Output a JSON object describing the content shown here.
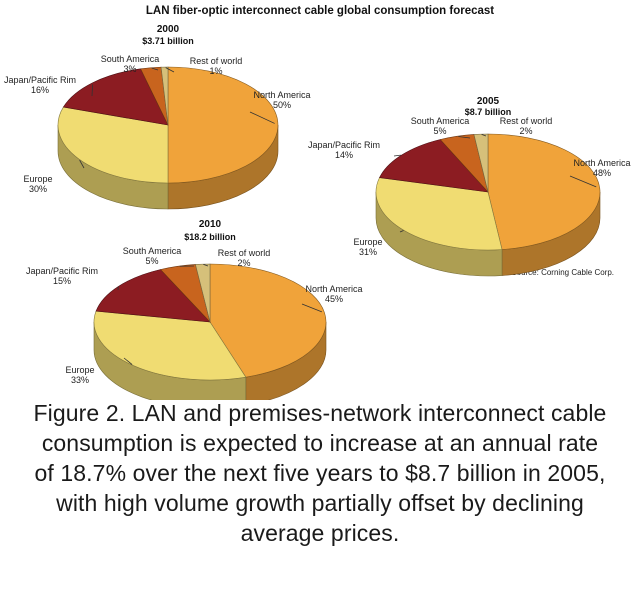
{
  "chart_data": [
    {
      "type": "pie",
      "title": "2000",
      "subtitle": "$3.71 billion",
      "slices": [
        {
          "name": "North America",
          "value": 50,
          "label_pct": "50%",
          "color": "#f0a33a"
        },
        {
          "name": "Europe",
          "value": 30,
          "label_pct": "30%",
          "color": "#f0dc72"
        },
        {
          "name": "Japan/Pacific Rim",
          "value": 16,
          "label_pct": "16%",
          "color": "#8c1c22"
        },
        {
          "name": "South America",
          "value": 3,
          "label_pct": "3%",
          "color": "#c8641e"
        },
        {
          "name": "Rest of world",
          "value": 1,
          "label_pct": "1%",
          "color": "#d6c07a"
        }
      ]
    },
    {
      "type": "pie",
      "title": "2005",
      "subtitle": "$8.7 billion",
      "slices": [
        {
          "name": "North America",
          "value": 48,
          "label_pct": "48%",
          "color": "#f0a33a"
        },
        {
          "name": "Europe",
          "value": 31,
          "label_pct": "31%",
          "color": "#f0dc72"
        },
        {
          "name": "Japan/Pacific Rim",
          "value": 14,
          "label_pct": "14%",
          "color": "#8c1c22"
        },
        {
          "name": "South America",
          "value": 5,
          "label_pct": "5%",
          "color": "#c8641e"
        },
        {
          "name": "Rest of world",
          "value": 2,
          "label_pct": "2%",
          "color": "#d6c07a"
        }
      ]
    },
    {
      "type": "pie",
      "title": "2010",
      "subtitle": "$18.2 billion",
      "slices": [
        {
          "name": "North America",
          "value": 45,
          "label_pct": "45%",
          "color": "#f0a33a"
        },
        {
          "name": "Europe",
          "value": 33,
          "label_pct": "33%",
          "color": "#f0dc72"
        },
        {
          "name": "Japan/Pacific Rim",
          "value": 15,
          "label_pct": "15%",
          "color": "#8c1c22"
        },
        {
          "name": "South America",
          "value": 5,
          "label_pct": "5%",
          "color": "#c8641e"
        },
        {
          "name": "Rest of world",
          "value": 2,
          "label_pct": "2%",
          "color": "#d6c07a"
        }
      ]
    }
  ],
  "figure": {
    "title": "LAN fiber-optic interconnect cable global consumption forecast",
    "source": "Source: Corning Cable Corp."
  },
  "caption": {
    "lines": [
      "Figure 2. LAN and premises-network interconnect cable",
      "consumption is expected to increase at an annual rate",
      "of 18.7% over the next five years to $8.7 billion in 2005,",
      "with high volume growth partially offset by declining",
      "average prices."
    ]
  }
}
